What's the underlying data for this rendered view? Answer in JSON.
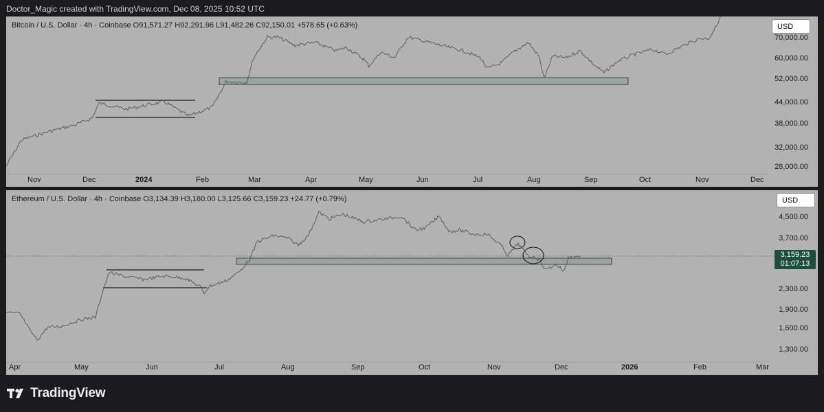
{
  "header": {
    "text": "Doctor_Magic created with TradingView.com, Dec 08, 2025 10:52 UTC"
  },
  "btc": {
    "title": "Bitcoin / U.S. Dollar · 4h · Coinbase  O91,571.27  H92,291.96  L91,482.26  C92,150.01  +578.65 (+0.63%)",
    "currency": "USD",
    "y_ticks": [
      "70,000.00",
      "60,000.00",
      "52,000.00",
      "44,000.00",
      "38,000.00",
      "32,000.00",
      "28,000.00"
    ],
    "x_ticks": [
      "Nov",
      "Dec",
      "2024",
      "Feb",
      "Mar",
      "Apr",
      "May",
      "Jun",
      "Jul",
      "Aug",
      "Sep",
      "Oct",
      "Nov",
      "Dec"
    ]
  },
  "eth": {
    "title": "Ethereum / U.S. Dollar · 4h · Coinbase  O3,134.39  H3,180.00  L3,125.66  C3,159.23  +24.77 (+0.79%)",
    "currency": "USD",
    "y_ticks": [
      "4,500.00",
      "3,700.00",
      "2,300.00",
      "1,900.00",
      "1,600.00",
      "1,300.00"
    ],
    "price_label": "3,159.23",
    "countdown": "01:07:13",
    "x_ticks": [
      "Apr",
      "May",
      "Jun",
      "Jul",
      "Aug",
      "Sep",
      "Oct",
      "Nov",
      "Dec",
      "2026",
      "Feb",
      "Mar"
    ]
  },
  "footer": {
    "brand": "TradingView"
  },
  "colors": {
    "pane_bg": "#b2b2b2",
    "price_line": "#555555",
    "zone_fill": "#9aa59f",
    "price_box": "#1d4d3c"
  }
}
